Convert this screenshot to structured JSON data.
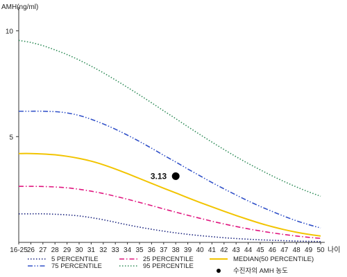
{
  "chart_data": {
    "type": "line",
    "ylabel": "AMH(ng/ml)",
    "xlabel": "나이",
    "categories": [
      "16-25",
      "26",
      "27",
      "28",
      "29",
      "30",
      "31",
      "32",
      "33",
      "34",
      "35",
      "36",
      "37",
      "38",
      "39",
      "40",
      "41",
      "42",
      "43",
      "44",
      "45",
      "46",
      "47",
      "48",
      "49",
      "50"
    ],
    "yticks": [
      5,
      10
    ],
    "ylim": [
      0,
      11
    ],
    "grid": false,
    "legend_position": "bottom",
    "series": [
      {
        "name": "5 PERCENTILE",
        "color": "#1a237e",
        "style": "dotted",
        "values": [
          1.35,
          1.35,
          1.35,
          1.33,
          1.3,
          1.25,
          1.17,
          1.07,
          0.95,
          0.83,
          0.72,
          0.62,
          0.53,
          0.45,
          0.38,
          0.32,
          0.27,
          0.22,
          0.18,
          0.15,
          0.12,
          0.1,
          0.08,
          0.06,
          0.05,
          0.04
        ]
      },
      {
        "name": "25 PERCENTILE",
        "color": "#e0157f",
        "style": "dashdot",
        "values": [
          2.65,
          2.65,
          2.64,
          2.62,
          2.58,
          2.51,
          2.42,
          2.31,
          2.18,
          2.04,
          1.89,
          1.74,
          1.58,
          1.43,
          1.28,
          1.14,
          1.0,
          0.87,
          0.75,
          0.64,
          0.54,
          0.45,
          0.37,
          0.3,
          0.24,
          0.19
        ]
      },
      {
        "name": "MEDIAN(50 PERCENTILE)",
        "color": "#f2c400",
        "style": "solid",
        "values": [
          4.2,
          4.2,
          4.18,
          4.14,
          4.07,
          3.97,
          3.84,
          3.67,
          3.47,
          3.25,
          3.02,
          2.79,
          2.56,
          2.34,
          2.11,
          1.89,
          1.68,
          1.47,
          1.27,
          1.08,
          0.9,
          0.74,
          0.6,
          0.48,
          0.38,
          0.3
        ]
      },
      {
        "name": "75 PERCENTILE",
        "color": "#3050c8",
        "style": "dashdotdot",
        "values": [
          6.2,
          6.2,
          6.2,
          6.18,
          6.12,
          6.0,
          5.82,
          5.6,
          5.35,
          5.07,
          4.77,
          4.45,
          4.12,
          3.8,
          3.47,
          3.15,
          2.83,
          2.53,
          2.24,
          1.96,
          1.7,
          1.46,
          1.23,
          1.02,
          0.84,
          0.68
        ]
      },
      {
        "name": "95 PERCENTILE",
        "color": "#2e8b57",
        "style": "dotted",
        "values": [
          9.55,
          9.45,
          9.3,
          9.1,
          8.88,
          8.62,
          8.33,
          8.02,
          7.68,
          7.33,
          6.97,
          6.6,
          6.22,
          5.85,
          5.47,
          5.1,
          4.74,
          4.39,
          4.05,
          3.73,
          3.43,
          3.14,
          2.87,
          2.62,
          2.39,
          2.18
        ]
      }
    ],
    "marker": {
      "x": "38",
      "y": 3.13,
      "label": "3.13",
      "legend_name": "수진자의 AMH 농도",
      "color": "#000000"
    }
  }
}
